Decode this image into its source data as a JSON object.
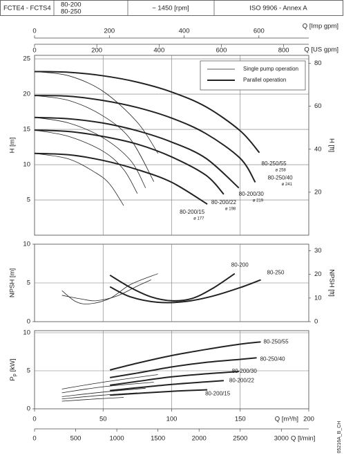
{
  "header": {
    "product": "FCTE4 - FCTS4",
    "models": [
      "80-200",
      "80-250"
    ],
    "speed": "~ 1450 [rpm]",
    "standard": "ISO 9906 - Annex A"
  },
  "footer": {
    "code": "05216A_B_CH"
  },
  "chart_data": [
    {
      "type": "line",
      "color": "#222222",
      "grid": true,
      "ylabel": "H [m]",
      "ylim": [
        0,
        25.5
      ],
      "yticks": [
        5,
        10,
        15,
        20,
        25
      ],
      "y2label": "H [ft]",
      "y2lim": [
        0,
        83.7
      ],
      "y2ticks": [
        20,
        40,
        60,
        80
      ],
      "xlim": [
        0,
        200
      ],
      "xticks": [
        50,
        100,
        150
      ],
      "top_axes": [
        {
          "label": "Q [Imp gpm]",
          "lim": [
            0,
            733.3
          ],
          "ticks": [
            0,
            200,
            400,
            600
          ]
        },
        {
          "label": "Q [US gpm]",
          "lim": [
            0,
            880.6
          ],
          "ticks": [
            0,
            200,
            400,
            600,
            800
          ]
        }
      ],
      "line_widths": {
        "single": 0.8,
        "parallel": 2
      },
      "legend": [
        {
          "label": "Single pump operation",
          "mode": "single"
        },
        {
          "label": "Parallel operation",
          "mode": "parallel"
        }
      ],
      "series": [
        {
          "name": "80-250/55",
          "diameter": "ø 258",
          "single": {
            "x": [
              0,
              25,
              50,
              75,
              90
            ],
            "values": [
              23.2,
              22.6,
              20.4,
              16,
              11.6
            ]
          },
          "parallel": {
            "x": [
              0,
              25,
              50,
              75,
              100,
              125,
              150,
              164
            ],
            "values": [
              23.2,
              23.1,
              22.6,
              21.7,
              20.3,
              18.2,
              14.8,
              11.7
            ]
          }
        },
        {
          "name": "80-250/40",
          "diameter": "ø 241",
          "single": {
            "x": [
              0,
              25,
              50,
              70,
              87
            ],
            "values": [
              19.8,
              19.1,
              16.9,
              13.6,
              7.6
            ]
          },
          "parallel": {
            "x": [
              0,
              25,
              50,
              75,
              100,
              125,
              150,
              161
            ],
            "values": [
              19.8,
              19.7,
              19.1,
              18.1,
              16.6,
              14.4,
              10.9,
              7.5
            ]
          }
        },
        {
          "name": "80-200/30",
          "diameter": "ø 219",
          "single": {
            "x": [
              0,
              25,
              50,
              70,
              81
            ],
            "values": [
              16.7,
              15.9,
              13.8,
              10.6,
              6.7
            ]
          },
          "parallel": {
            "x": [
              0,
              25,
              50,
              75,
              100,
              125,
              149
            ],
            "values": [
              16.7,
              16.5,
              15.9,
              14.8,
              13.2,
              10.9,
              6.7
            ]
          }
        },
        {
          "name": "80-200/22",
          "diameter": "ø 198",
          "single": {
            "x": [
              0,
              25,
              50,
              65,
              75
            ],
            "values": [
              14.9,
              14,
              11.9,
              9.3,
              5.9
            ]
          },
          "parallel": {
            "x": [
              0,
              25,
              50,
              75,
              100,
              125,
              138
            ],
            "values": [
              14.9,
              14.7,
              14,
              12.9,
              11.1,
              8.5,
              5.8
            ]
          }
        },
        {
          "name": "80-200/15",
          "diameter": "ø 177",
          "single": {
            "x": [
              0,
              25,
              45,
              55,
              65
            ],
            "values": [
              11.6,
              10.8,
              8.8,
              7.2,
              4.2
            ]
          },
          "parallel": {
            "x": [
              0,
              25,
              50,
              75,
              100,
              126
            ],
            "values": [
              11.6,
              11.4,
              10.6,
              9.3,
              7.5,
              4.4
            ]
          }
        }
      ]
    },
    {
      "type": "line",
      "color": "#222222",
      "grid": true,
      "ylabel": "NPSH [m]",
      "ylim": [
        0,
        10
      ],
      "yticks": [
        0,
        5,
        10
      ],
      "y2label": "NPSH [ft]",
      "y2lim": [
        0,
        32.81
      ],
      "y2ticks": [
        0,
        10,
        20,
        30
      ],
      "xlim": [
        0,
        200
      ],
      "xticks": [
        50,
        100,
        150
      ],
      "series": [
        {
          "name": "80-200",
          "single": {
            "x": [
              20,
              30,
              40,
              55,
              70,
              90
            ],
            "values": [
              4,
              2.6,
              2.3,
              3,
              4.8,
              6.2
            ]
          },
          "parallel": {
            "x": [
              55,
              70,
              85,
              100,
              115,
              130,
              146
            ],
            "values": [
              6,
              4.4,
              3.2,
              2.7,
              3,
              4.3,
              6.2
            ]
          }
        },
        {
          "name": "80-250",
          "single": {
            "x": [
              20,
              35,
              45,
              60,
              75,
              85
            ],
            "values": [
              3.4,
              2.9,
              2.7,
              3.3,
              4.6,
              5.4
            ]
          },
          "parallel": {
            "x": [
              55,
              70,
              90,
              110,
              130,
              150,
              165
            ],
            "values": [
              4.5,
              3.2,
              2.5,
              2.6,
              3.3,
              4.4,
              5.4
            ]
          }
        }
      ]
    },
    {
      "type": "line",
      "color": "#222222",
      "grid": true,
      "ylabel": "P",
      "ylabel_sub": "p",
      "ylabel_unit": "[kW]",
      "ylim": [
        0,
        10
      ],
      "yticks": [
        0,
        5,
        10
      ],
      "xlim": [
        0,
        200
      ],
      "xticks": [
        50,
        100,
        150
      ],
      "bottom_axes": [
        {
          "label": "Q [m³/h]",
          "lim": [
            0,
            200
          ],
          "ticks": [
            0,
            50,
            100,
            150,
            200
          ]
        },
        {
          "label": "Q [l/min]",
          "lim": [
            0,
            3333.3
          ],
          "ticks": [
            0,
            500,
            1000,
            1500,
            2000,
            2500,
            3000
          ]
        }
      ],
      "series": [
        {
          "name": "80-250/55",
          "single": {
            "x": [
              20,
              50,
              90
            ],
            "values": [
              2.6,
              3.5,
              4.5
            ]
          },
          "parallel": {
            "x": [
              55,
              75,
              100,
              125,
              150,
              165
            ],
            "values": [
              5.1,
              6,
              7,
              7.8,
              8.5,
              8.8
            ]
          }
        },
        {
          "name": "80-250/40",
          "single": {
            "x": [
              20,
              50,
              87
            ],
            "values": [
              2.1,
              2.9,
              3.5
            ]
          },
          "parallel": {
            "x": [
              55,
              75,
              100,
              125,
              150,
              162
            ],
            "values": [
              4.1,
              4.7,
              5.5,
              6.1,
              6.5,
              6.7
            ]
          }
        },
        {
          "name": "80-200/30",
          "single": {
            "x": [
              20,
              50,
              81
            ],
            "values": [
              1.6,
              2.2,
              2.7
            ]
          },
          "parallel": {
            "x": [
              55,
              75,
              100,
              125,
              149
            ],
            "values": [
              3.1,
              3.6,
              4.2,
              4.6,
              4.9
            ]
          }
        },
        {
          "name": "80-200/22",
          "single": {
            "x": [
              20,
              50,
              75
            ],
            "values": [
              1.3,
              1.8,
              2.1
            ]
          },
          "parallel": {
            "x": [
              55,
              100,
              138
            ],
            "values": [
              2.4,
              3.2,
              3.7
            ]
          }
        },
        {
          "name": "80-200/15",
          "single": {
            "x": [
              20,
              45,
              65
            ],
            "values": [
              1,
              1.3,
              1.5
            ]
          },
          "parallel": {
            "x": [
              55,
              100,
              126
            ],
            "values": [
              1.8,
              2.3,
              2.5
            ]
          }
        }
      ]
    }
  ]
}
